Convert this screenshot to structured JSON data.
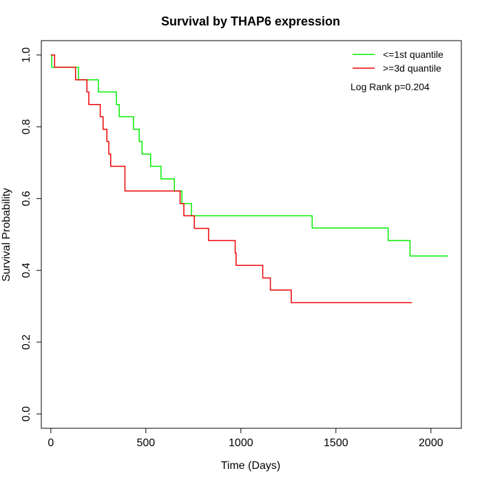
{
  "chart_data": {
    "type": "line",
    "title": "Survival by THAP6 expression",
    "xlabel": "Time (Days)",
    "ylabel": "Survival Probability",
    "xlim": [
      -50,
      2160
    ],
    "ylim": [
      -0.04,
      1.04
    ],
    "x_ticks": [
      0,
      500,
      1000,
      1500,
      2000
    ],
    "y_ticks": [
      0.0,
      0.2,
      0.4,
      0.6,
      0.8,
      1.0
    ],
    "x_tick_labels": [
      "0",
      "500",
      "1000",
      "1500",
      "2000"
    ],
    "y_tick_labels": [
      "0.0",
      "0.2",
      "0.4",
      "0.6",
      "0.8",
      "1.0"
    ],
    "legend_position": "top-right",
    "annotation": "Log Rank p=0.204",
    "series": [
      {
        "name": "<=1st quantile",
        "color": "#00ee00",
        "steps": [
          [
            0,
            1.0
          ],
          [
            5,
            0.966
          ],
          [
            145,
            0.931
          ],
          [
            250,
            0.897
          ],
          [
            345,
            0.862
          ],
          [
            360,
            0.828
          ],
          [
            435,
            0.793
          ],
          [
            465,
            0.759
          ],
          [
            480,
            0.724
          ],
          [
            525,
            0.69
          ],
          [
            580,
            0.655
          ],
          [
            650,
            0.621
          ],
          [
            660,
            0.621
          ],
          [
            690,
            0.586
          ],
          [
            740,
            0.552
          ],
          [
            1375,
            0.518
          ],
          [
            1775,
            0.483
          ],
          [
            1890,
            0.44
          ],
          [
            2090,
            0.44
          ]
        ]
      },
      {
        "name": ">=3d quantile",
        "color": "#ee0000",
        "steps": [
          [
            0,
            1.0
          ],
          [
            20,
            0.966
          ],
          [
            130,
            0.931
          ],
          [
            190,
            0.897
          ],
          [
            200,
            0.862
          ],
          [
            260,
            0.828
          ],
          [
            275,
            0.793
          ],
          [
            295,
            0.759
          ],
          [
            305,
            0.724
          ],
          [
            315,
            0.69
          ],
          [
            390,
            0.621
          ],
          [
            680,
            0.586
          ],
          [
            700,
            0.552
          ],
          [
            755,
            0.517
          ],
          [
            830,
            0.483
          ],
          [
            970,
            0.448
          ],
          [
            975,
            0.414
          ],
          [
            1115,
            0.379
          ],
          [
            1155,
            0.345
          ],
          [
            1265,
            0.31
          ],
          [
            1900,
            0.31
          ]
        ]
      }
    ]
  }
}
